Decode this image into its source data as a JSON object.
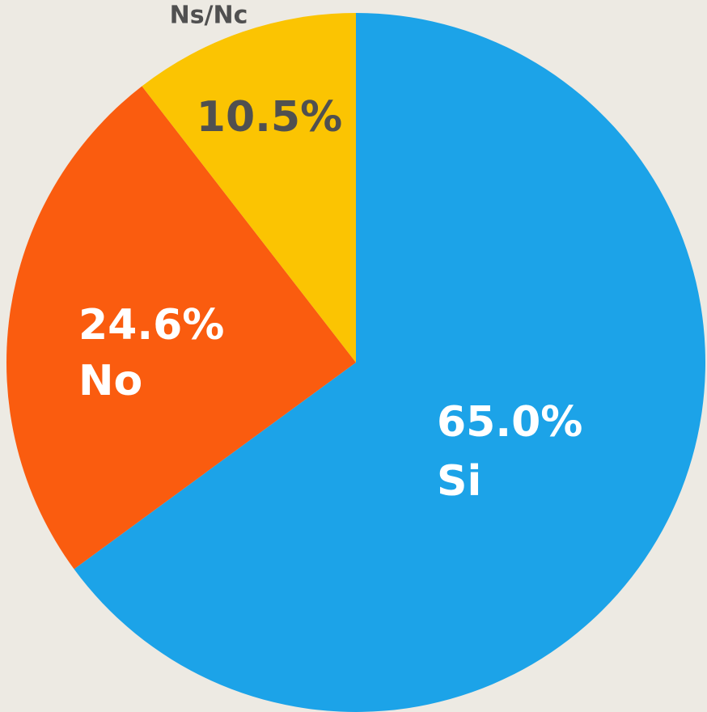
{
  "chart_data": {
    "type": "pie",
    "categories": [
      "Si",
      "No",
      "Ns/Nc"
    ],
    "values": [
      65.0,
      24.6,
      10.5
    ],
    "value_labels": [
      "65.0%",
      "24.6%",
      "10.5%"
    ],
    "colors": [
      "#1ca3e8",
      "#fa5c0f",
      "#fbc402"
    ]
  }
}
